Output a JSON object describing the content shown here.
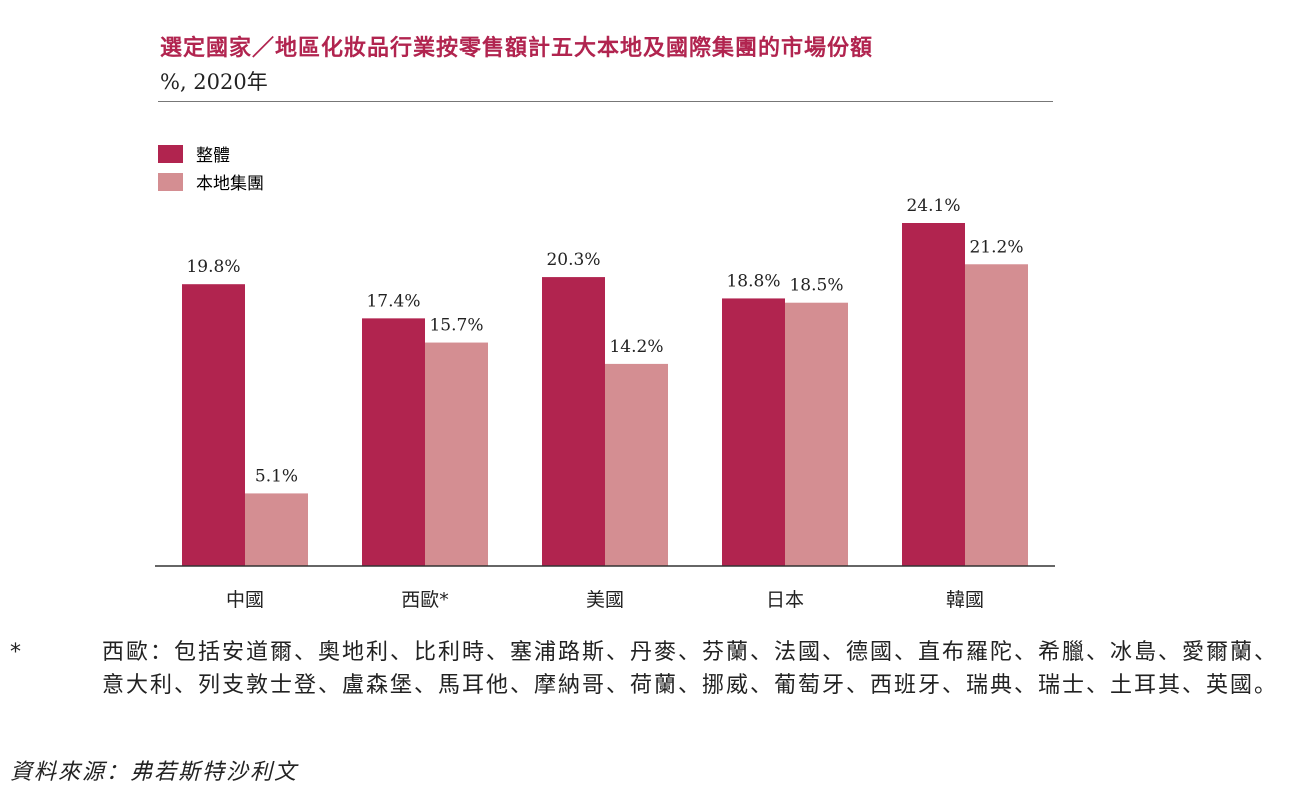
{
  "header": {
    "title": "選定國家／地區化妝品行業按零售額計五大本地及國際集團的市場份額",
    "subtitle": "%, 2020年"
  },
  "colors": {
    "overall": "#b1244f",
    "local": "#d48e92",
    "title": "#b1244f"
  },
  "chart_data": {
    "type": "bar",
    "categories": [
      "中國",
      "西歐*",
      "美國",
      "日本",
      "韓國"
    ],
    "series": [
      {
        "name": "整體",
        "values": [
          19.8,
          17.4,
          20.3,
          18.8,
          24.1
        ],
        "labels": [
          "19.8%",
          "17.4%",
          "20.3%",
          "18.8%",
          "24.1%"
        ]
      },
      {
        "name": "本地集團",
        "values": [
          5.1,
          15.7,
          14.2,
          18.5,
          21.2
        ],
        "labels": [
          "5.1%",
          "15.7%",
          "14.2%",
          "18.5%",
          "21.2%"
        ]
      }
    ],
    "ylim": [
      0,
      24.1
    ],
    "legend_position": "top-left",
    "grid": false
  },
  "footnote": {
    "marker": "*",
    "text": "西歐：包括安道爾、奧地利、比利時、塞浦路斯、丹麥、芬蘭、法國、德國、直布羅陀、希臘、冰島、愛爾蘭、意大利、列支敦士登、盧森堡、馬耳他、摩納哥、荷蘭、挪威、葡萄牙、西班牙、瑞典、瑞士、土耳其、英國。"
  },
  "source": "資料來源：弗若斯特沙利文"
}
